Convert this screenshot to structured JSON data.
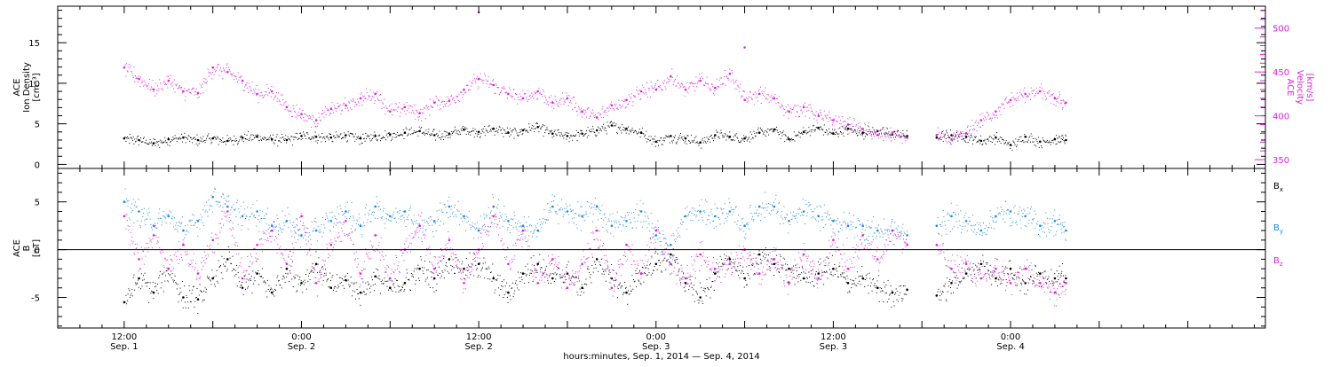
{
  "chart_data": [
    {
      "type": "scatter",
      "panel": "top",
      "left_axis": {
        "label_lines": [
          "ACE",
          "Ion Density",
          "[cm⁻³]"
        ],
        "ticks": [
          0,
          5,
          10,
          15
        ],
        "range": [
          -0.5,
          19.5
        ],
        "color": "#000000"
      },
      "right_axis": {
        "label_lines": [
          "ACE",
          "Velocity",
          "[km/s]"
        ],
        "ticks": [
          350,
          400,
          450,
          500
        ],
        "range": [
          340,
          525
        ],
        "color": "#e020e0"
      },
      "series": [
        {
          "name": "",
          "axis": "left",
          "color": "#000000",
          "x": [
            0,
            2,
            4,
            6,
            8,
            10,
            12,
            14,
            16,
            18,
            20,
            22,
            24,
            26,
            28,
            30,
            32,
            34,
            36,
            38,
            40,
            42,
            44,
            46,
            48,
            50,
            52,
            54,
            56,
            58,
            60,
            62,
            64,
            66,
            68,
            70,
            72,
            74,
            76,
            78,
            80,
            82,
            84,
            86,
            88,
            90,
            92,
            94,
            96,
            98,
            100,
            102,
            104,
            106,
            108,
            110,
            112,
            114,
            116,
            118,
            120,
            122,
            124,
            126,
            127.5
          ],
          "y": [
            3.2,
            3.0,
            2.6,
            3.1,
            3.3,
            3.0,
            3.2,
            2.9,
            3.3,
            3.4,
            3.1,
            3.0,
            3.5,
            3.4,
            3.3,
            3.6,
            3.2,
            3.5,
            3.7,
            3.9,
            4.1,
            3.6,
            3.8,
            4.3,
            4.0,
            4.4,
            3.9,
            4.2,
            4.6,
            3.8,
            3.5,
            3.8,
            4.2,
            4.8,
            4.4,
            3.9,
            2.8,
            3.5,
            3.2,
            2.7,
            3.6,
            3.4,
            3.2,
            3.9,
            4.3,
            3.1,
            4.0,
            4.5,
            3.8,
            4.4,
            3.9,
            4.1,
            3.7,
            3.5,
            null,
            3.3,
            3.6,
            3.4,
            2.9,
            3.3,
            2.4,
            3.4,
            2.8,
            3.1,
            3.0
          ]
        },
        {
          "name": "",
          "axis": "right",
          "color": "#e020e0",
          "x": [
            0,
            2,
            4,
            6,
            8,
            10,
            12,
            14,
            16,
            18,
            20,
            22,
            24,
            26,
            28,
            30,
            32,
            34,
            36,
            38,
            40,
            42,
            44,
            46,
            48,
            50,
            52,
            54,
            56,
            58,
            60,
            62,
            64,
            66,
            68,
            70,
            72,
            74,
            76,
            78,
            80,
            82,
            84,
            86,
            88,
            90,
            92,
            94,
            96,
            98,
            100,
            102,
            104,
            106,
            108,
            110,
            112,
            114,
            116,
            118,
            120,
            122,
            124,
            126,
            127.5
          ],
          "y": [
            455,
            442,
            430,
            440,
            428,
            426,
            455,
            450,
            440,
            425,
            428,
            410,
            402,
            395,
            408,
            412,
            420,
            425,
            405,
            410,
            403,
            415,
            417,
            430,
            442,
            435,
            425,
            420,
            428,
            415,
            420,
            405,
            398,
            412,
            418,
            428,
            430,
            445,
            430,
            440,
            432,
            448,
            418,
            425,
            420,
            405,
            410,
            400,
            395,
            390,
            385,
            378,
            380,
            375,
            null,
            378,
            373,
            380,
            395,
            405,
            418,
            425,
            428,
            420,
            415
          ]
        }
      ],
      "outliers": [
        {
          "series": 1,
          "x": 48,
          "y": 518
        },
        {
          "series": 1,
          "x": 84,
          "y": 478
        }
      ]
    },
    {
      "type": "scatter",
      "panel": "bottom",
      "left_axis": {
        "label_lines": [
          "ACE",
          "B",
          "[nT]"
        ],
        "ticks": [
          -5,
          0,
          5
        ],
        "range": [
          -8.2,
          8.5
        ],
        "color": "#000000"
      },
      "zero_line": true,
      "series": [
        {
          "name": "Bx",
          "color": "#000000",
          "x": [
            0,
            2,
            4,
            6,
            8,
            10,
            12,
            14,
            16,
            18,
            20,
            22,
            24,
            26,
            28,
            30,
            32,
            34,
            36,
            38,
            40,
            42,
            44,
            46,
            48,
            50,
            52,
            54,
            56,
            58,
            60,
            62,
            64,
            66,
            68,
            70,
            72,
            74,
            76,
            78,
            80,
            82,
            84,
            86,
            88,
            90,
            92,
            94,
            96,
            98,
            100,
            102,
            104,
            106,
            108,
            110,
            112,
            114,
            116,
            118,
            120,
            122,
            124,
            126,
            127.5
          ],
          "y": [
            -5.5,
            -3.0,
            -4.5,
            -2.0,
            -5.0,
            -5.2,
            -3.0,
            -1.0,
            -4.0,
            -2.5,
            -4.5,
            -2.0,
            -3.5,
            -1.5,
            -4.0,
            -3.2,
            -4.5,
            -2.8,
            -4.0,
            -3.5,
            -2.0,
            -3.0,
            -1.0,
            -2.0,
            -1.5,
            -3.0,
            -4.5,
            -2.5,
            -1.5,
            -3.0,
            -2.5,
            -4.0,
            -1.0,
            -3.0,
            -4.5,
            -2.5,
            -1.5,
            -0.5,
            -3.5,
            -5.0,
            -2.5,
            -1.0,
            -3.0,
            -0.5,
            -1.5,
            -2.0,
            -3.0,
            -2.5,
            -2.0,
            -3.5,
            -3.0,
            -4.0,
            -4.5,
            -4.2,
            null,
            -4.8,
            -3.5,
            -2.5,
            -1.5,
            -3.0,
            -2.0,
            -3.5,
            -2.5,
            -3.0,
            -3.0
          ]
        },
        {
          "name": "By",
          "color": "#1e88e5",
          "x": [
            0,
            2,
            4,
            6,
            8,
            10,
            12,
            14,
            16,
            18,
            20,
            22,
            24,
            26,
            28,
            30,
            32,
            34,
            36,
            38,
            40,
            42,
            44,
            46,
            48,
            50,
            52,
            54,
            56,
            58,
            60,
            62,
            64,
            66,
            68,
            70,
            72,
            74,
            76,
            78,
            80,
            82,
            84,
            86,
            88,
            90,
            92,
            94,
            96,
            98,
            100,
            102,
            104,
            106,
            108,
            110,
            112,
            114,
            116,
            118,
            120,
            122,
            124,
            126,
            127.5
          ],
          "y": [
            5.0,
            4.0,
            2.5,
            3.5,
            2.0,
            3.0,
            5.5,
            4.5,
            3.5,
            4.0,
            2.5,
            3.0,
            1.5,
            2.0,
            3.0,
            4.0,
            2.5,
            4.5,
            3.5,
            4.0,
            2.5,
            3.0,
            4.5,
            3.5,
            2.0,
            4.5,
            3.0,
            2.5,
            2.0,
            4.5,
            4.0,
            3.5,
            4.5,
            2.5,
            3.0,
            4.0,
            1.5,
            0.5,
            3.5,
            4.0,
            3.5,
            4.0,
            2.5,
            4.5,
            4.5,
            3.0,
            4.0,
            3.5,
            3.0,
            2.5,
            2.5,
            2.0,
            2.0,
            1.5,
            null,
            2.5,
            3.5,
            3.0,
            2.0,
            3.5,
            4.0,
            3.5,
            2.5,
            3.0,
            2.0
          ]
        },
        {
          "name": "Bz",
          "color": "#e020e0",
          "x": [
            0,
            2,
            4,
            6,
            8,
            10,
            12,
            14,
            16,
            18,
            20,
            22,
            24,
            26,
            28,
            30,
            32,
            34,
            36,
            38,
            40,
            42,
            44,
            46,
            48,
            50,
            52,
            54,
            56,
            58,
            60,
            62,
            64,
            66,
            68,
            70,
            72,
            74,
            76,
            78,
            80,
            82,
            84,
            86,
            88,
            90,
            92,
            94,
            96,
            98,
            100,
            102,
            104,
            106,
            108,
            110,
            112,
            114,
            116,
            118,
            120,
            122,
            124,
            126,
            127.5
          ],
          "y": [
            3.5,
            -1.0,
            1.5,
            -2.0,
            0.5,
            -2.5,
            1.0,
            4.0,
            -3.0,
            0.5,
            2.0,
            -1.5,
            3.5,
            -3.5,
            0.5,
            3.0,
            -2.5,
            1.5,
            -3.0,
            0.0,
            2.5,
            -2.0,
            1.0,
            -3.5,
            0.0,
            3.5,
            -1.5,
            2.0,
            -3.5,
            -1.0,
            -4.0,
            -1.5,
            2.0,
            -4.0,
            0.5,
            -2.5,
            2.0,
            -1.5,
            -3.0,
            -0.5,
            -2.0,
            -1.5,
            0.0,
            -2.5,
            -1.0,
            -3.5,
            -0.5,
            -3.0,
            1.0,
            -2.0,
            1.5,
            -1.0,
            2.0,
            0.5,
            null,
            0.5,
            -2.0,
            -1.5,
            -3.0,
            -2.0,
            -3.5,
            -2.0,
            -3.5,
            -4.5,
            -3.5
          ]
        }
      ],
      "outliers": [
        {
          "series": 2,
          "x": 36,
          "y": 8.3
        }
      ]
    }
  ],
  "x_axis": {
    "range": [
      -9,
      154.5
    ],
    "ticks": [
      {
        "x": 0,
        "time": "12:00",
        "date": "Sep. 1"
      },
      {
        "x": 24,
        "time": "0:00",
        "date": "Sep. 2"
      },
      {
        "x": 48,
        "time": "12:00",
        "date": "Sep. 2"
      },
      {
        "x": 72,
        "time": "0:00",
        "date": "Sep. 3"
      },
      {
        "x": 96,
        "time": "12:00",
        "date": "Sep. 3"
      },
      {
        "x": 120,
        "time": "0:00",
        "date": "Sep. 4"
      }
    ],
    "minor_step": 3,
    "label": "hours:minutes, Sep.  1, 2014 — Sep.  4, 2014"
  }
}
